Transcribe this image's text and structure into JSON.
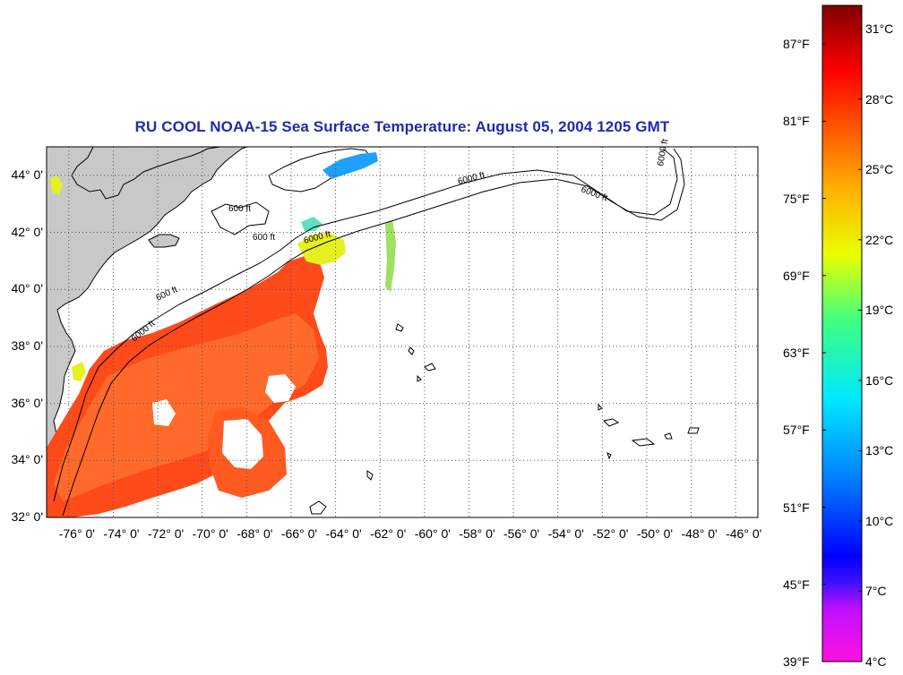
{
  "title": "RU COOL  NOAA-15  Sea Surface Temperature:  August 05, 2004 1205 GMT",
  "map": {
    "lat_labels": [
      "44° 0'",
      "42° 0'",
      "40° 0'",
      "38° 0'",
      "36° 0'",
      "34° 0'",
      "32° 0'"
    ],
    "lon_labels": [
      "-76° 0'",
      "-74° 0'",
      "-72° 0'",
      "-70° 0'",
      "-68° 0'",
      "-66° 0'",
      "-64° 0'",
      "-62° 0'",
      "-60° 0'",
      "-58° 0'",
      "-56° 0'",
      "-54° 0'",
      "-52° 0'",
      "-50° 0'",
      "-48° 0'",
      "-46° 0'"
    ],
    "lat_range": [
      32,
      45
    ],
    "lon_range": [
      -77,
      -45
    ],
    "isobath_labels": [
      "600 ft",
      "6000 ft",
      "600 ft",
      "6000 ft",
      "600 ft",
      "6000 ft",
      "6000 ft",
      "6000 ft"
    ],
    "colors": {
      "land": "#c8c8c8",
      "water": "#ffffff",
      "grid": "#555555",
      "sst_warm": "#ff4a1a",
      "sst_mid": "#ff6a1a",
      "sst_cool": "#e6f01e",
      "sst_cold": "#1ea0ff",
      "title": "#1f2bb0"
    }
  },
  "colorbar": {
    "fahrenheit_labels": [
      "87°F",
      "81°F",
      "75°F",
      "69°F",
      "63°F",
      "57°F",
      "51°F",
      "45°F",
      "39°F"
    ],
    "celsius_labels": [
      "31°C",
      "28°C",
      "25°C",
      "22°C",
      "19°C",
      "16°C",
      "13°C",
      "10°C",
      "7°C",
      "4°C"
    ],
    "range_c": [
      4,
      32
    ],
    "colors": [
      "#ff00d8",
      "#8000ff",
      "#0000ff",
      "#00b0ff",
      "#00ffe0",
      "#40ff60",
      "#e8ff00",
      "#ffa000",
      "#ff4000",
      "#ff0000",
      "#b00000",
      "#800000"
    ]
  }
}
